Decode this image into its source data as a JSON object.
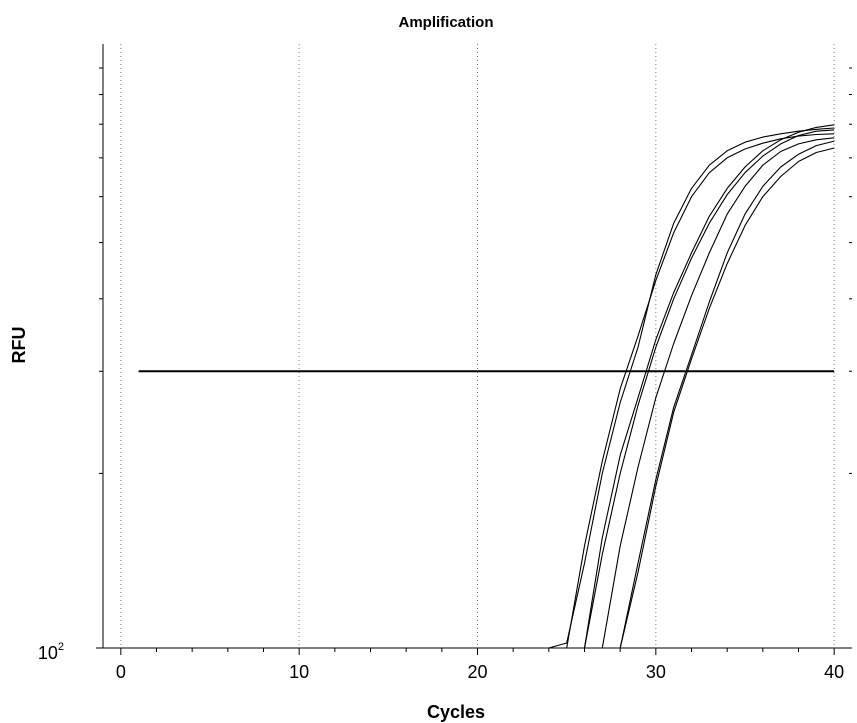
{
  "chart_data": {
    "type": "line",
    "title": "Amplification",
    "xlabel": "Cycles",
    "ylabel": "RFU",
    "x_ticks": [
      0,
      10,
      20,
      30,
      40
    ],
    "x_tick_labels": [
      "0",
      "10",
      "20",
      "30",
      "40"
    ],
    "xlim": [
      -1,
      41
    ],
    "y_scale": "log",
    "ylim": [
      100,
      1100
    ],
    "y_tick_base": "10",
    "y_tick_exponent": "2",
    "grid": "vertical dotted",
    "threshold": {
      "x": [
        1,
        40
      ],
      "y": 300
    },
    "series": [
      {
        "x": [
          24,
          25,
          26,
          27,
          28,
          29,
          30,
          31,
          32,
          33,
          34,
          35,
          36,
          37,
          38,
          39,
          40
        ],
        "values": [
          100,
          102,
          140,
          200,
          265,
          330,
          440,
          540,
          620,
          680,
          720,
          745,
          760,
          770,
          778,
          784,
          788
        ]
      },
      {
        "x": [
          25,
          26,
          27,
          28,
          29,
          30,
          31,
          32,
          33,
          34,
          35,
          36,
          37,
          38,
          39,
          40
        ],
        "values": [
          100,
          150,
          210,
          280,
          345,
          430,
          520,
          600,
          660,
          700,
          725,
          742,
          755,
          763,
          768,
          770
        ]
      },
      {
        "x": [
          26,
          27,
          28,
          29,
          30,
          31,
          32,
          33,
          34,
          35,
          36,
          37,
          38,
          39,
          40
        ],
        "values": [
          100,
          155,
          215,
          270,
          340,
          410,
          480,
          555,
          620,
          675,
          720,
          752,
          775,
          790,
          798
        ]
      },
      {
        "x": [
          26,
          27,
          28,
          29,
          30,
          31,
          32,
          33,
          34,
          35,
          36,
          37,
          38,
          39,
          40
        ],
        "values": [
          100,
          145,
          200,
          262,
          330,
          400,
          470,
          540,
          605,
          660,
          705,
          740,
          765,
          778,
          782
        ]
      },
      {
        "x": [
          27,
          28,
          29,
          30,
          31,
          32,
          33,
          34,
          35,
          36,
          37,
          38,
          39,
          40
        ],
        "values": [
          100,
          150,
          205,
          270,
          335,
          405,
          480,
          560,
          625,
          680,
          718,
          740,
          752,
          758
        ]
      },
      {
        "x": [
          28,
          29,
          30,
          31,
          32,
          33,
          34,
          35,
          36,
          37,
          38,
          39,
          40
        ],
        "values": [
          100,
          140,
          195,
          260,
          320,
          395,
          480,
          560,
          625,
          675,
          710,
          735,
          748
        ]
      },
      {
        "x": [
          28,
          29,
          30,
          31,
          32,
          33,
          34,
          35,
          36,
          37,
          38,
          39,
          40
        ],
        "values": [
          100,
          135,
          190,
          255,
          315,
          385,
          460,
          535,
          600,
          650,
          690,
          715,
          728
        ]
      }
    ]
  }
}
